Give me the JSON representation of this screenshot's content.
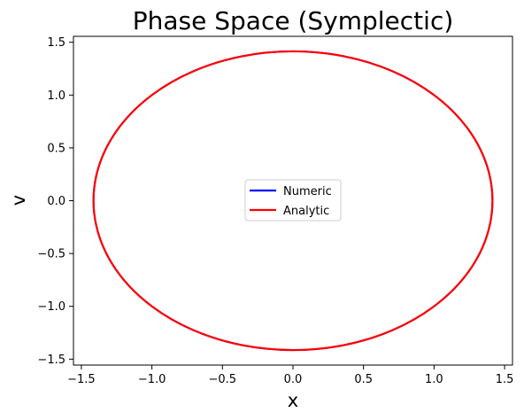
{
  "chart_data": {
    "type": "line",
    "title": "Phase Space  (Symplectic)",
    "xlabel": "x",
    "ylabel": "v",
    "xlim": [
      -1.556,
      1.556
    ],
    "ylim": [
      -1.556,
      1.556
    ],
    "xticks": [
      -1.5,
      -1.0,
      -0.5,
      0.0,
      0.5,
      1.0,
      1.5
    ],
    "yticks": [
      -1.5,
      -1.0,
      -0.5,
      0.0,
      0.5,
      1.0,
      1.5
    ],
    "xtick_labels": [
      "−1.5",
      "−1.0",
      "−0.5",
      "0.0",
      "0.5",
      "1.0",
      "1.5"
    ],
    "ytick_labels": [
      "−1.5",
      "−1.0",
      "−0.5",
      "0.0",
      "0.5",
      "1.0",
      "1.5"
    ],
    "grid": false,
    "legend_position": "center",
    "series": [
      {
        "name": "Numeric",
        "color": "#0000ff",
        "x": [
          1.414,
          1.366,
          1.225,
          1.0,
          0.707,
          0.366,
          0.0,
          -0.366,
          -0.707,
          -1.0,
          -1.225,
          -1.366,
          -1.414,
          -1.366,
          -1.225,
          -1.0,
          -0.707,
          -0.366,
          0.0,
          0.366,
          0.707,
          1.0,
          1.225,
          1.366,
          1.414
        ],
        "y": [
          0.0,
          0.366,
          0.707,
          1.0,
          1.225,
          1.366,
          1.414,
          1.366,
          1.225,
          1.0,
          0.707,
          0.366,
          0.0,
          -0.366,
          -0.707,
          -1.0,
          -1.225,
          -1.366,
          -1.414,
          -1.366,
          -1.225,
          -1.0,
          -0.707,
          -0.366,
          0.0
        ]
      },
      {
        "name": "Analytic",
        "color": "#ff0000",
        "x": [
          1.414,
          1.366,
          1.225,
          1.0,
          0.707,
          0.366,
          0.0,
          -0.366,
          -0.707,
          -1.0,
          -1.225,
          -1.366,
          -1.414,
          -1.366,
          -1.225,
          -1.0,
          -0.707,
          -0.366,
          0.0,
          0.366,
          0.707,
          1.0,
          1.225,
          1.366,
          1.414
        ],
        "y": [
          0.0,
          0.366,
          0.707,
          1.0,
          1.225,
          1.366,
          1.414,
          1.366,
          1.225,
          1.0,
          0.707,
          0.366,
          0.0,
          -0.366,
          -0.707,
          -1.0,
          -1.225,
          -1.366,
          -1.414,
          -1.366,
          -1.225,
          -1.0,
          -0.707,
          -0.366,
          0.0
        ]
      }
    ]
  }
}
